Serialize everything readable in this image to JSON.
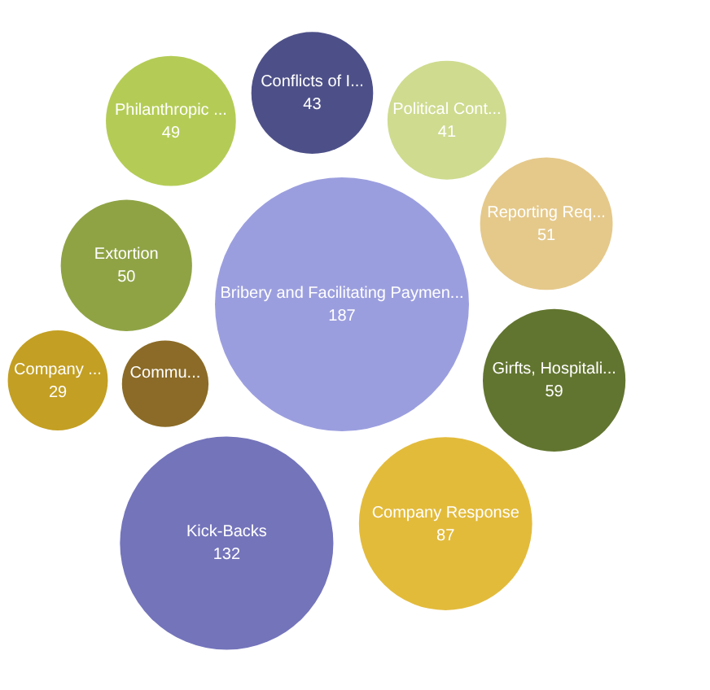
{
  "chart_data": {
    "type": "other",
    "categories": [
      "Bribery and Facilitating Paymen...",
      "Conflicts of I...",
      "Political Cont...",
      "Reporting Req...",
      "Girfts, Hospitali...",
      "Company Response",
      "Kick-Backs",
      "Commu...",
      "Extortion",
      "Philanthropic ...",
      "Company ..."
    ],
    "values": [
      187,
      43,
      41,
      51,
      59,
      87,
      132,
      null,
      50,
      49,
      29
    ],
    "value_labels": [
      "187",
      "43",
      "41",
      "51",
      "59",
      "87",
      "132",
      null,
      "50",
      "49",
      "29"
    ],
    "colors": [
      "#9b9ede",
      "#4d5088",
      "#cfdb8f",
      "#e5c98b",
      "#627530",
      "#e3bb3b",
      "#7474bb",
      "#8b6b27",
      "#8fa345",
      "#b4cc56",
      "#c39f23"
    ]
  }
}
